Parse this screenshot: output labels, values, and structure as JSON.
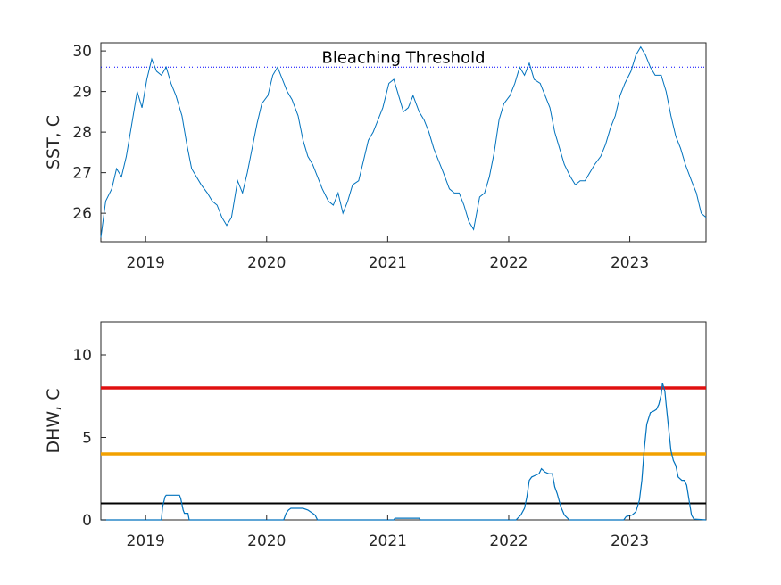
{
  "chart_data": [
    {
      "type": "line",
      "ylabel": "SST, C",
      "xlim": [
        2018.63,
        2023.63
      ],
      "ylim": [
        25.3,
        30.2
      ],
      "x_ticks": [
        2019,
        2020,
        2021,
        2022,
        2023
      ],
      "x_tick_labels": [
        "2019",
        "2020",
        "2021",
        "2022",
        "2023"
      ],
      "y_ticks": [
        26,
        27,
        28,
        29,
        30
      ],
      "y_tick_labels": [
        "26",
        "27",
        "28",
        "29",
        "30"
      ],
      "series": [
        {
          "color": "#0072BD",
          "x": [
            2018.63,
            2018.67,
            2018.72,
            2018.76,
            2018.8,
            2018.84,
            2018.88,
            2018.93,
            2018.97,
            2019.01,
            2019.05,
            2019.09,
            2019.13,
            2019.17,
            2019.21,
            2019.25,
            2019.3,
            2019.34,
            2019.38,
            2019.42,
            2019.46,
            2019.51,
            2019.55,
            2019.59,
            2019.63,
            2019.67,
            2019.71,
            2019.76,
            2019.8,
            2019.84,
            2019.88,
            2019.92,
            2019.96,
            2020.01,
            2020.05,
            2020.09,
            2020.13,
            2020.17,
            2020.21,
            2020.26,
            2020.3,
            2020.34,
            2020.38,
            2020.42,
            2020.46,
            2020.51,
            2020.55,
            2020.59,
            2020.63,
            2020.67,
            2020.71,
            2020.76,
            2020.8,
            2020.84,
            2020.88,
            2020.92,
            2020.96,
            2021.01,
            2021.05,
            2021.09,
            2021.13,
            2021.17,
            2021.21,
            2021.26,
            2021.3,
            2021.34,
            2021.38,
            2021.42,
            2021.46,
            2021.51,
            2021.55,
            2021.59,
            2021.63,
            2021.67,
            2021.71,
            2021.76,
            2021.8,
            2021.84,
            2021.88,
            2021.92,
            2021.96,
            2022.01,
            2022.05,
            2022.09,
            2022.13,
            2022.17,
            2022.21,
            2022.26,
            2022.3,
            2022.34,
            2022.38,
            2022.42,
            2022.46,
            2022.51,
            2022.55,
            2022.59,
            2022.63,
            2022.67,
            2022.71,
            2022.76,
            2022.8,
            2022.84,
            2022.88,
            2022.92,
            2022.96,
            2023.01,
            2023.05,
            2023.09,
            2023.13,
            2023.17,
            2023.21,
            2023.26,
            2023.3,
            2023.34,
            2023.38,
            2023.42,
            2023.46,
            2023.51,
            2023.55,
            2023.59,
            2023.63
          ],
          "y": [
            25.4,
            26.3,
            26.6,
            27.1,
            26.9,
            27.4,
            28.1,
            29.0,
            28.6,
            29.3,
            29.8,
            29.5,
            29.4,
            29.6,
            29.2,
            28.9,
            28.4,
            27.7,
            27.1,
            26.9,
            26.7,
            26.5,
            26.3,
            26.2,
            25.9,
            25.7,
            25.9,
            26.8,
            26.5,
            27.0,
            27.6,
            28.2,
            28.7,
            28.9,
            29.4,
            29.6,
            29.3,
            29.0,
            28.8,
            28.4,
            27.8,
            27.4,
            27.2,
            26.9,
            26.6,
            26.3,
            26.2,
            26.5,
            26.0,
            26.3,
            26.7,
            26.8,
            27.3,
            27.8,
            28.0,
            28.3,
            28.6,
            29.2,
            29.3,
            28.9,
            28.5,
            28.6,
            28.9,
            28.5,
            28.3,
            28.0,
            27.6,
            27.3,
            27.0,
            26.6,
            26.5,
            26.5,
            26.2,
            25.8,
            25.6,
            26.4,
            26.5,
            26.9,
            27.5,
            28.3,
            28.7,
            28.9,
            29.2,
            29.6,
            29.4,
            29.7,
            29.3,
            29.2,
            28.9,
            28.6,
            28.0,
            27.6,
            27.2,
            26.9,
            26.7,
            26.8,
            26.8,
            27.0,
            27.2,
            27.4,
            27.7,
            28.1,
            28.4,
            28.9,
            29.2,
            29.5,
            29.9,
            30.1,
            29.9,
            29.6,
            29.4,
            29.4,
            29.0,
            28.4,
            27.9,
            27.6,
            27.2,
            26.8,
            26.5,
            26.0,
            25.9
          ]
        }
      ],
      "reference_lines": [
        {
          "y": 29.6,
          "style": "dotted",
          "color": "#0000ff",
          "label": "Bleaching Threshold"
        }
      ]
    },
    {
      "type": "line",
      "ylabel": "DHW, C",
      "xlim": [
        2018.63,
        2023.63
      ],
      "ylim": [
        0,
        12
      ],
      "x_ticks": [
        2019,
        2020,
        2021,
        2022,
        2023
      ],
      "x_tick_labels": [
        "2019",
        "2020",
        "2021",
        "2022",
        "2023"
      ],
      "y_ticks": [
        0,
        5,
        10
      ],
      "y_tick_labels": [
        "0",
        "5",
        "10"
      ],
      "series": [
        {
          "color": "#0072BD",
          "x": [
            2018.63,
            2019.13,
            2019.14,
            2019.16,
            2019.17,
            2019.28,
            2019.29,
            2019.31,
            2019.32,
            2019.35,
            2019.36,
            2019.9,
            2020.14,
            2020.16,
            2020.18,
            2020.2,
            2020.3,
            2020.34,
            2020.38,
            2020.4,
            2020.42,
            2021.05,
            2021.06,
            2021.26,
            2021.27,
            2022.06,
            2022.1,
            2022.13,
            2022.15,
            2022.17,
            2022.19,
            2022.22,
            2022.25,
            2022.27,
            2022.3,
            2022.33,
            2022.36,
            2022.38,
            2022.4,
            2022.43,
            2022.46,
            2022.5,
            2022.95,
            2022.97,
            2023.02,
            2023.05,
            2023.08,
            2023.1,
            2023.12,
            2023.14,
            2023.17,
            2023.2,
            2023.22,
            2023.24,
            2023.26,
            2023.27,
            2023.29,
            2023.3,
            2023.32,
            2023.34,
            2023.36,
            2023.38,
            2023.4,
            2023.43,
            2023.45,
            2023.47,
            2023.49,
            2023.51,
            2023.53,
            2023.63
          ],
          "y": [
            0,
            0,
            0.8,
            1.4,
            1.5,
            1.5,
            1.3,
            0.6,
            0.4,
            0.4,
            0,
            0,
            0,
            0.4,
            0.6,
            0.7,
            0.7,
            0.6,
            0.4,
            0.3,
            0,
            0,
            0.1,
            0.1,
            0,
            0,
            0.3,
            0.7,
            1.4,
            2.4,
            2.6,
            2.7,
            2.8,
            3.1,
            2.9,
            2.8,
            2.8,
            2.0,
            1.6,
            0.8,
            0.3,
            0,
            0,
            0.2,
            0.3,
            0.5,
            1.2,
            2.4,
            4.3,
            5.8,
            6.5,
            6.6,
            6.7,
            7.0,
            7.6,
            8.3,
            7.8,
            7.0,
            5.6,
            4.2,
            3.6,
            3.3,
            2.6,
            2.4,
            2.4,
            2.1,
            1.2,
            0.3,
            0.05,
            0
          ]
        }
      ],
      "reference_lines": [
        {
          "y": 8,
          "style": "solid",
          "color": "#e01010"
        },
        {
          "y": 4,
          "style": "solid",
          "color": "#f2a100"
        },
        {
          "y": 1,
          "style": "solid",
          "color": "#000000"
        }
      ]
    }
  ]
}
